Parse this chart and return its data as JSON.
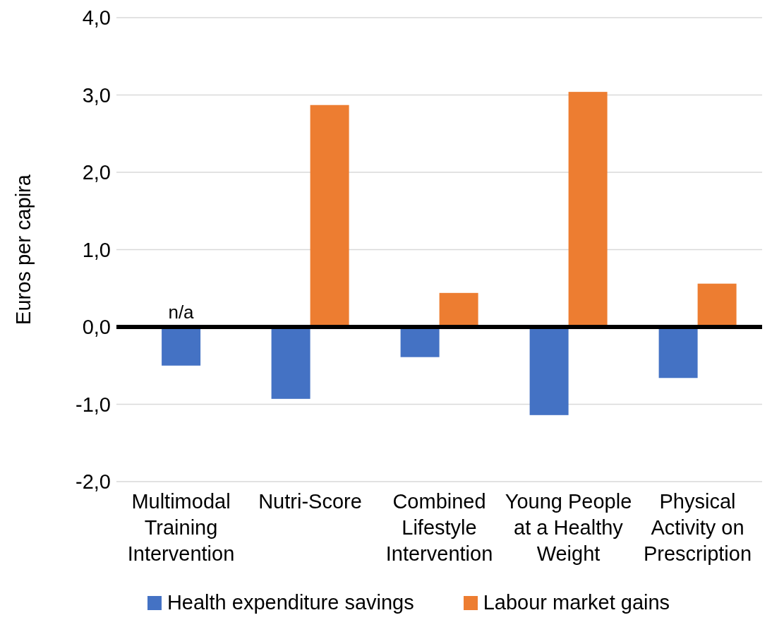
{
  "chart_data": {
    "type": "bar",
    "ylabel": "Euros per capira",
    "categories": [
      "Multimodal Training Intervention",
      "Nutri-Score",
      "Combined Lifestyle Intervention",
      "Young People at a Healthy Weight",
      "Physical Activity on Prescription"
    ],
    "series": [
      {
        "name": "Health expenditure savings",
        "color": "#4472c4",
        "values": [
          -0.5,
          -0.93,
          -0.39,
          -1.14,
          -0.66
        ]
      },
      {
        "name": "Labour market gains",
        "color": "#ed7d31",
        "values": [
          null,
          2.87,
          0.44,
          3.04,
          0.56
        ]
      }
    ],
    "ylim": [
      -2,
      4
    ],
    "yticks": [
      {
        "value": -2,
        "label": "-2,0"
      },
      {
        "value": -1,
        "label": "-1,0"
      },
      {
        "value": 0,
        "label": "0,0"
      },
      {
        "value": 1,
        "label": "1,0"
      },
      {
        "value": 2,
        "label": "2,0"
      },
      {
        "value": 3,
        "label": "3,0"
      },
      {
        "value": 4,
        "label": "4,0"
      }
    ],
    "grid": "y",
    "legend": "bottom",
    "ref_lines": [
      {
        "axis": "y",
        "value": 0,
        "color": "#000000"
      }
    ],
    "annotations": [
      {
        "text": "n/a",
        "x": "Multimodal Training Intervention",
        "y": 0
      }
    ]
  }
}
